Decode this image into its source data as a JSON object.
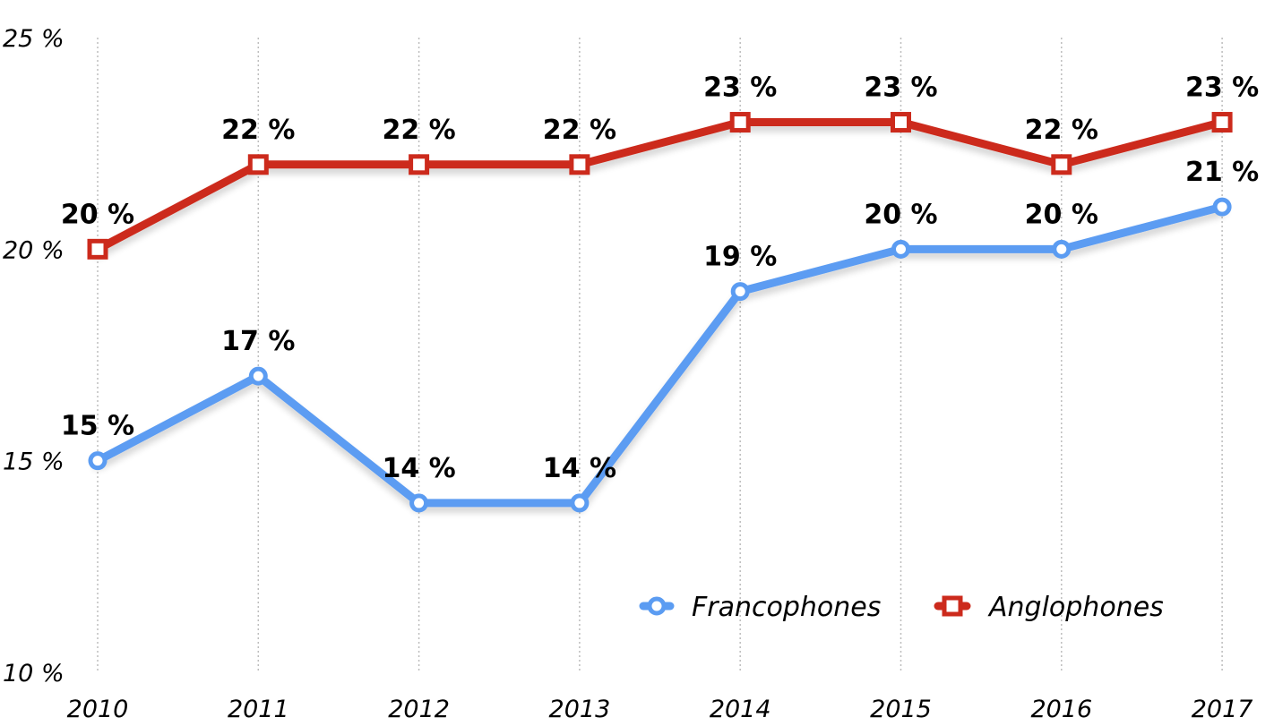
{
  "chart_data": {
    "type": "line",
    "x": [
      "2010",
      "2011",
      "2012",
      "2013",
      "2014",
      "2015",
      "2016",
      "2017"
    ],
    "ylim": [
      10,
      25
    ],
    "yticks": [
      10,
      15,
      20,
      25
    ],
    "ytick_labels": [
      "10 %",
      "15 %",
      "20 %",
      "25 %"
    ],
    "grid": "vertical dotted",
    "legend_position": "bottom-right",
    "series": [
      {
        "name": "Francophones",
        "color": "#5b9cf2",
        "marker": "circle",
        "values": [
          15,
          17,
          14,
          14,
          19,
          20,
          20,
          21
        ],
        "labels": [
          "15 %",
          "17 %",
          "14 %",
          "14 %",
          "19 %",
          "20 %",
          "20 %",
          "21 %"
        ]
      },
      {
        "name": "Anglophones",
        "color": "#cc2a1c",
        "marker": "square",
        "values": [
          20,
          22,
          22,
          22,
          23,
          23,
          22,
          23
        ],
        "labels": [
          "20 %",
          "22 %",
          "22 %",
          "22 %",
          "23 %",
          "23 %",
          "22 %",
          "23 %"
        ]
      }
    ]
  }
}
